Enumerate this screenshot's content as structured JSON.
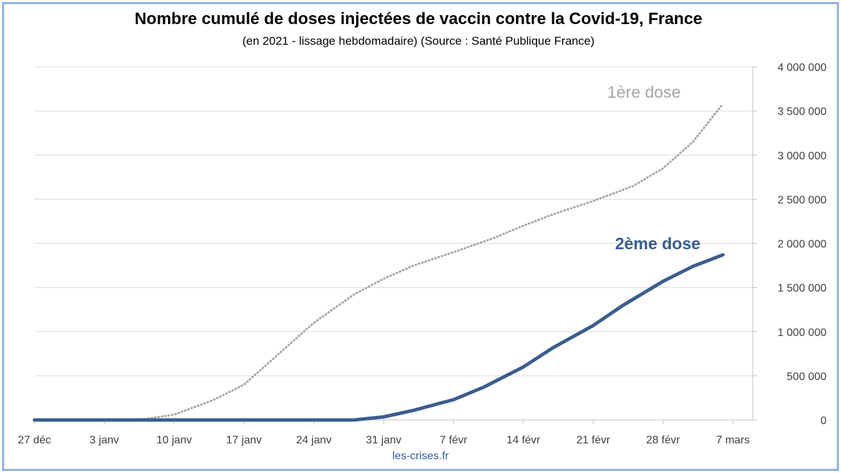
{
  "title": "Nombre cumulé de doses injectées de vaccin contre la Covid-19, France",
  "subtitle": "(en 2021 - lissage hebdomadaire) (Source : Santé Publique France)",
  "source_label": "les-crises.fr",
  "chart_data": {
    "type": "line",
    "title": "Nombre cumulé de doses injectées de vaccin contre la Covid-19, France",
    "subtitle": "(en 2021 - lissage hebdomadaire) (Source : Santé Publique France)",
    "x_tick_labels": [
      "27 déc",
      "3 janv",
      "10 janv",
      "17 janv",
      "24 janv",
      "31 janv",
      "7 févr",
      "14 févr",
      "21 févr",
      "28 févr",
      "7 mars"
    ],
    "y_tick_labels": [
      "0",
      "500 000",
      "1 000 000",
      "1 500 000",
      "2 000 000",
      "2 500 000",
      "3 000 000",
      "3 500 000",
      "4 000 000"
    ],
    "ylim": [
      0,
      4000000
    ],
    "y_axis_side": "right",
    "grid": "horizontal",
    "legend": "inline labels",
    "series": [
      {
        "name": "1ère dose",
        "style": "dotted",
        "color": "#a6a6a6",
        "x": [
          0,
          7,
          11,
          14,
          18,
          21,
          24,
          28,
          32,
          35,
          38,
          42,
          46,
          49,
          52,
          56,
          60,
          63,
          66,
          69
        ],
        "y": [
          0,
          0,
          10000,
          60000,
          230000,
          400000,
          700000,
          1100000,
          1420000,
          1600000,
          1750000,
          1900000,
          2060000,
          2200000,
          2330000,
          2480000,
          2650000,
          2850000,
          3150000,
          3580000
        ]
      },
      {
        "name": "2ème dose",
        "style": "solid",
        "color": "#3a5d8f",
        "x": [
          0,
          32,
          35,
          38,
          42,
          45,
          49,
          52,
          56,
          59,
          63,
          66,
          69
        ],
        "y": [
          0,
          0,
          35000,
          110000,
          230000,
          370000,
          600000,
          820000,
          1070000,
          1300000,
          1570000,
          1740000,
          1870000
        ]
      }
    ]
  }
}
